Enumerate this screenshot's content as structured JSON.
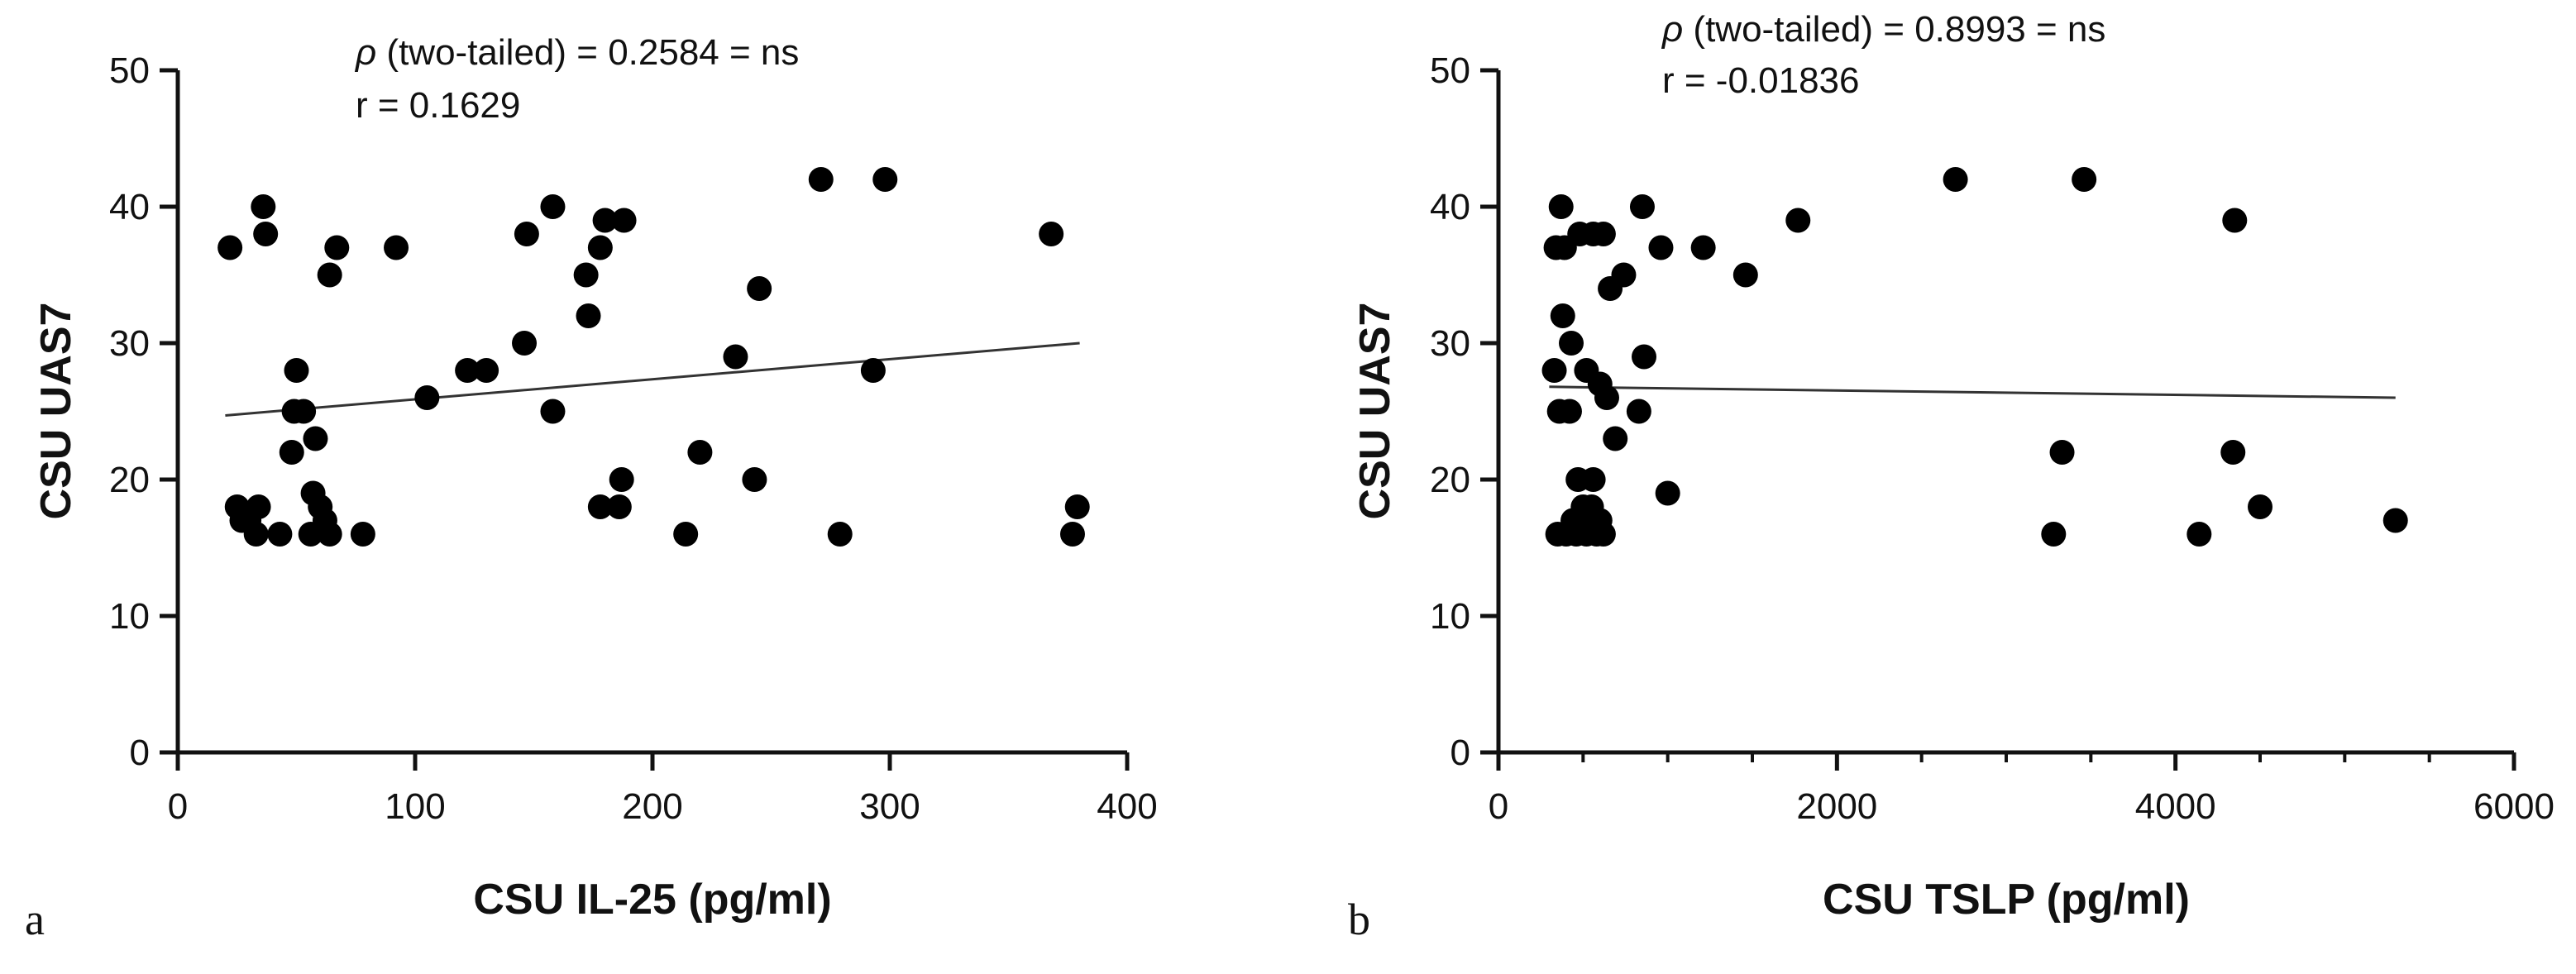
{
  "chart_data": [
    {
      "type": "scatter",
      "panel_label": "a",
      "xlabel": "CSU IL-25 (pg/ml)",
      "ylabel": "CSU UAS7",
      "xlim": [
        0,
        400
      ],
      "ylim": [
        0,
        50
      ],
      "xticks": [
        "0",
        "100",
        "200",
        "300",
        "400"
      ],
      "yticks": [
        "0",
        "10",
        "20",
        "30",
        "40",
        "50"
      ],
      "stat_p_symbol": "ρ",
      "stat_p_text": " (two-tailed) = 0.2584 = ns",
      "stat_r_text": "r = 0.1629",
      "fit_line": {
        "x": [
          20,
          380
        ],
        "y": [
          24.7,
          30.0
        ]
      },
      "points": [
        {
          "x": 22,
          "y": 37
        },
        {
          "x": 36,
          "y": 40
        },
        {
          "x": 37,
          "y": 38
        },
        {
          "x": 67,
          "y": 37
        },
        {
          "x": 64,
          "y": 35
        },
        {
          "x": 92,
          "y": 37
        },
        {
          "x": 50,
          "y": 28
        },
        {
          "x": 49,
          "y": 25
        },
        {
          "x": 53,
          "y": 25
        },
        {
          "x": 58,
          "y": 23
        },
        {
          "x": 48,
          "y": 22
        },
        {
          "x": 57,
          "y": 19
        },
        {
          "x": 60,
          "y": 18
        },
        {
          "x": 62,
          "y": 17
        },
        {
          "x": 64,
          "y": 16
        },
        {
          "x": 56,
          "y": 16
        },
        {
          "x": 25,
          "y": 18
        },
        {
          "x": 27,
          "y": 17
        },
        {
          "x": 30,
          "y": 17
        },
        {
          "x": 34,
          "y": 18
        },
        {
          "x": 33,
          "y": 16
        },
        {
          "x": 43,
          "y": 16
        },
        {
          "x": 78,
          "y": 16
        },
        {
          "x": 105,
          "y": 26
        },
        {
          "x": 122,
          "y": 28
        },
        {
          "x": 130,
          "y": 28
        },
        {
          "x": 146,
          "y": 30
        },
        {
          "x": 147,
          "y": 38
        },
        {
          "x": 158,
          "y": 40
        },
        {
          "x": 158,
          "y": 25
        },
        {
          "x": 172,
          "y": 35
        },
        {
          "x": 173,
          "y": 32
        },
        {
          "x": 178,
          "y": 37
        },
        {
          "x": 180,
          "y": 39
        },
        {
          "x": 188,
          "y": 39
        },
        {
          "x": 178,
          "y": 18
        },
        {
          "x": 186,
          "y": 18
        },
        {
          "x": 187,
          "y": 20
        },
        {
          "x": 214,
          "y": 16
        },
        {
          "x": 220,
          "y": 22
        },
        {
          "x": 235,
          "y": 29
        },
        {
          "x": 243,
          "y": 20
        },
        {
          "x": 245,
          "y": 34
        },
        {
          "x": 271,
          "y": 42
        },
        {
          "x": 279,
          "y": 16
        },
        {
          "x": 293,
          "y": 28
        },
        {
          "x": 298,
          "y": 42
        },
        {
          "x": 368,
          "y": 38
        },
        {
          "x": 377,
          "y": 16
        },
        {
          "x": 379,
          "y": 18
        }
      ]
    },
    {
      "type": "scatter",
      "panel_label": "b",
      "xlabel": "CSU TSLP (pg/ml)",
      "ylabel": "CSU UAS7",
      "xlim": [
        0,
        6000
      ],
      "ylim": [
        0,
        50
      ],
      "xticks": [
        "0",
        "2000",
        "4000",
        "6000"
      ],
      "yticks": [
        "0",
        "10",
        "20",
        "30",
        "40",
        "50"
      ],
      "stat_p_symbol": "ρ",
      "stat_p_text": " (two-tailed) = 0.8993 = ns",
      "stat_r_text": "r = -0.01836",
      "fit_line": {
        "x": [
          300,
          5300
        ],
        "y": [
          26.8,
          26.0
        ]
      },
      "points": [
        {
          "x": 370,
          "y": 40
        },
        {
          "x": 340,
          "y": 37
        },
        {
          "x": 390,
          "y": 37
        },
        {
          "x": 480,
          "y": 38
        },
        {
          "x": 560,
          "y": 38
        },
        {
          "x": 620,
          "y": 38
        },
        {
          "x": 380,
          "y": 32
        },
        {
          "x": 430,
          "y": 30
        },
        {
          "x": 330,
          "y": 28
        },
        {
          "x": 520,
          "y": 28
        },
        {
          "x": 600,
          "y": 27
        },
        {
          "x": 640,
          "y": 26
        },
        {
          "x": 360,
          "y": 25
        },
        {
          "x": 420,
          "y": 25
        },
        {
          "x": 660,
          "y": 34
        },
        {
          "x": 740,
          "y": 35
        },
        {
          "x": 690,
          "y": 23
        },
        {
          "x": 850,
          "y": 40
        },
        {
          "x": 960,
          "y": 37
        },
        {
          "x": 860,
          "y": 29
        },
        {
          "x": 830,
          "y": 25
        },
        {
          "x": 1000,
          "y": 19
        },
        {
          "x": 1210,
          "y": 37
        },
        {
          "x": 1460,
          "y": 35
        },
        {
          "x": 1770,
          "y": 39
        },
        {
          "x": 2700,
          "y": 42
        },
        {
          "x": 3460,
          "y": 42
        },
        {
          "x": 4350,
          "y": 39
        },
        {
          "x": 3330,
          "y": 22
        },
        {
          "x": 4340,
          "y": 22
        },
        {
          "x": 3280,
          "y": 16
        },
        {
          "x": 4140,
          "y": 16
        },
        {
          "x": 4500,
          "y": 18
        },
        {
          "x": 5300,
          "y": 17
        },
        {
          "x": 350,
          "y": 16
        },
        {
          "x": 400,
          "y": 16
        },
        {
          "x": 440,
          "y": 17
        },
        {
          "x": 470,
          "y": 20
        },
        {
          "x": 500,
          "y": 18
        },
        {
          "x": 520,
          "y": 16
        },
        {
          "x": 540,
          "y": 17
        },
        {
          "x": 560,
          "y": 20
        },
        {
          "x": 580,
          "y": 16
        },
        {
          "x": 600,
          "y": 17
        },
        {
          "x": 620,
          "y": 16
        },
        {
          "x": 460,
          "y": 16
        },
        {
          "x": 500,
          "y": 17
        },
        {
          "x": 550,
          "y": 18
        }
      ]
    }
  ]
}
